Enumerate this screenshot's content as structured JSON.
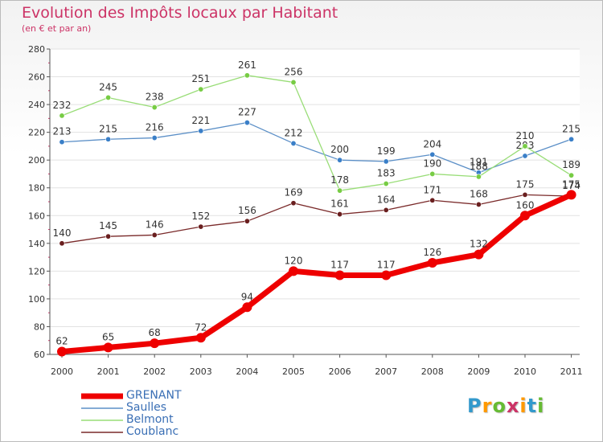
{
  "header": {
    "title": "Evolution des Impôts locaux par Habitant",
    "subtitle": "(en € et par an)"
  },
  "brand": {
    "letters": [
      "P",
      "r",
      "o",
      "x",
      "i",
      "t",
      "i"
    ],
    "colors": [
      "#3399cc",
      "#ff9900",
      "#66bb33",
      "#cc3366",
      "#ff9900",
      "#3399cc",
      "#66bb33"
    ]
  },
  "chart_data": {
    "type": "line",
    "title": "Evolution des Impôts locaux par Habitant",
    "subtitle": "(en € et par an)",
    "xlabel": "",
    "ylabel": "",
    "x": [
      "2000",
      "2001",
      "2002",
      "2003",
      "2004",
      "2005",
      "2006",
      "2007",
      "2008",
      "2009",
      "2010",
      "2011"
    ],
    "ylim": [
      60,
      280
    ],
    "yticks": [
      "60",
      "80",
      "100",
      "120",
      "140",
      "160",
      "180",
      "200",
      "220",
      "240",
      "260",
      "280"
    ],
    "grid": "horizontal",
    "legend_position": "bottom-left",
    "series": [
      {
        "name": "Saulles",
        "color": "#5b8fc7",
        "marker": "#3a7fc8",
        "width": 1.3,
        "values": [
          213,
          215,
          216,
          221,
          227,
          212,
          200,
          199,
          204,
          191,
          203,
          215
        ],
        "labels": [
          "213",
          "215",
          "216",
          "221",
          "227",
          "212",
          "200",
          "199",
          "204",
          "191",
          "203",
          "215"
        ]
      },
      {
        "name": "Belmont",
        "color": "#99dd77",
        "marker": "#77cc44",
        "width": 1.3,
        "values": [
          232,
          245,
          238,
          251,
          261,
          256,
          178,
          183,
          190,
          188,
          210,
          189
        ],
        "labels": [
          "232",
          "245",
          "238",
          "251",
          "261",
          "256",
          "178",
          "183",
          "190",
          "188",
          "210",
          "189"
        ]
      },
      {
        "name": "Coublanc",
        "color": "#7a2a2a",
        "marker": "#6a1f1f",
        "width": 1.3,
        "values": [
          140,
          145,
          146,
          152,
          156,
          169,
          161,
          164,
          171,
          168,
          175,
          174
        ],
        "labels": [
          "140",
          "145",
          "146",
          "152",
          "156",
          "169",
          "161",
          "164",
          "171",
          "168",
          "175",
          "174"
        ]
      },
      {
        "name": "GRENANT",
        "color": "#ee0000",
        "marker": "#ee0000",
        "width": 7,
        "values": [
          62,
          65,
          68,
          72,
          94,
          120,
          117,
          117,
          126,
          132,
          160,
          175
        ],
        "labels": [
          "62",
          "65",
          "68",
          "72",
          "94",
          "120",
          "117",
          "117",
          "126",
          "132",
          "160",
          "175"
        ]
      }
    ],
    "legend": [
      "GRENANT",
      "Saulles",
      "Belmont",
      "Coublanc"
    ]
  }
}
